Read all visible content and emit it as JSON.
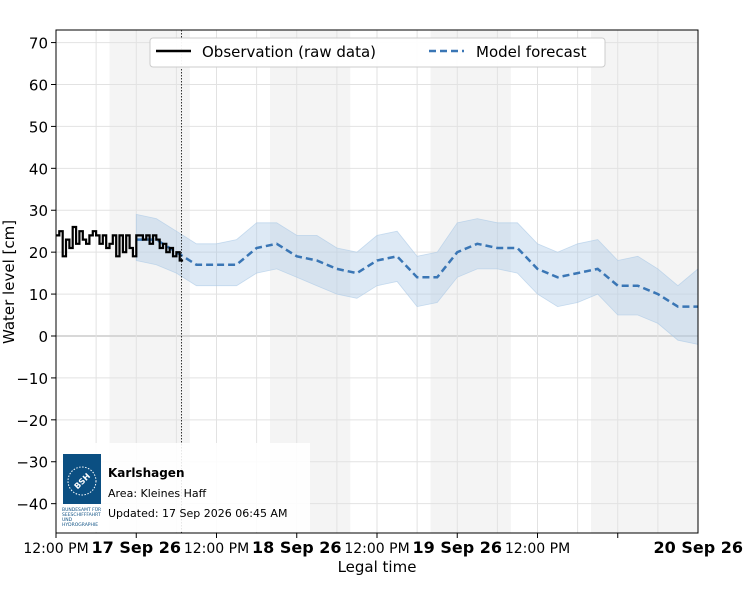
{
  "chart_data": {
    "type": "line",
    "title": "",
    "xlabel": "Legal time",
    "ylabel": "Water level [cm]",
    "ylim": [
      -47,
      73
    ],
    "xlim": [
      "2026-09-16 12:00",
      "2026-09-20 12:00"
    ],
    "y_ticks": [
      -40,
      -30,
      -20,
      -10,
      0,
      10,
      20,
      30,
      40,
      50,
      60,
      70
    ],
    "x_ticks": [
      {
        "label": "12:00 PM",
        "time": "2026-09-16 12:00",
        "bold": false
      },
      {
        "label": "17 Sep 26",
        "time": "2026-09-17 00:00",
        "bold": true
      },
      {
        "label": "12:00 PM",
        "time": "2026-09-17 12:00",
        "bold": false
      },
      {
        "label": "18 Sep 26",
        "time": "2026-09-18 00:00",
        "bold": true
      },
      {
        "label": "12:00 PM",
        "time": "2026-09-18 12:00",
        "bold": false
      },
      {
        "label": "19 Sep 26",
        "time": "2026-09-19 00:00",
        "bold": true
      },
      {
        "label": "12:00 PM",
        "time": "2026-09-19 12:00",
        "bold": false
      },
      {
        "label": "20 Sep 26",
        "time": "2026-09-20 00:00",
        "bold": true
      }
    ],
    "night_shading": [
      [
        "2026-09-16 20:00",
        "2026-09-17 08:00"
      ],
      [
        "2026-09-17 20:00",
        "2026-09-18 08:00"
      ],
      [
        "2026-09-18 20:00",
        "2026-09-19 08:00"
      ],
      [
        "2026-09-19 20:00",
        "2026-09-20 12:00"
      ]
    ],
    "now_marker": "2026-09-17 06:45",
    "grid": true,
    "legend_position": "top-center",
    "series": [
      {
        "name": "Observation (raw data)",
        "style": "solid",
        "color": "#000000",
        "x": [
          "2026-09-16 12:00",
          "2026-09-16 12:30",
          "2026-09-16 13:00",
          "2026-09-16 13:30",
          "2026-09-16 14:00",
          "2026-09-16 14:30",
          "2026-09-16 15:00",
          "2026-09-16 15:30",
          "2026-09-16 16:00",
          "2026-09-16 16:30",
          "2026-09-16 17:00",
          "2026-09-16 17:30",
          "2026-09-16 18:00",
          "2026-09-16 18:30",
          "2026-09-16 19:00",
          "2026-09-16 19:30",
          "2026-09-16 20:00",
          "2026-09-16 20:30",
          "2026-09-16 21:00",
          "2026-09-16 21:30",
          "2026-09-16 22:00",
          "2026-09-16 22:30",
          "2026-09-16 23:00",
          "2026-09-16 23:30",
          "2026-09-17 00:00",
          "2026-09-17 00:30",
          "2026-09-17 01:00",
          "2026-09-17 01:30",
          "2026-09-17 02:00",
          "2026-09-17 02:30",
          "2026-09-17 03:00",
          "2026-09-17 03:30",
          "2026-09-17 04:00",
          "2026-09-17 04:30",
          "2026-09-17 05:00",
          "2026-09-17 05:30",
          "2026-09-17 06:00",
          "2026-09-17 06:30",
          "2026-09-17 07:00"
        ],
        "values": [
          24,
          25,
          19,
          23,
          21,
          26,
          22,
          25,
          23,
          22,
          24,
          25,
          24,
          22,
          24,
          21,
          22,
          24,
          19,
          24,
          20,
          24,
          21,
          19,
          24,
          24,
          23,
          24,
          22,
          24,
          23,
          21,
          22,
          20,
          21,
          19,
          20,
          18,
          18
        ]
      },
      {
        "name": "Model forecast",
        "style": "dashed",
        "color": "#3a76b5",
        "band_color": "#a9c8e6",
        "x": [
          "2026-09-17 00:00",
          "2026-09-17 03:00",
          "2026-09-17 06:00",
          "2026-09-17 09:00",
          "2026-09-17 12:00",
          "2026-09-17 15:00",
          "2026-09-17 18:00",
          "2026-09-17 21:00",
          "2026-09-18 00:00",
          "2026-09-18 03:00",
          "2026-09-18 06:00",
          "2026-09-18 09:00",
          "2026-09-18 12:00",
          "2026-09-18 15:00",
          "2026-09-18 18:00",
          "2026-09-18 21:00",
          "2026-09-19 00:00",
          "2026-09-19 03:00",
          "2026-09-19 06:00",
          "2026-09-19 09:00",
          "2026-09-19 12:00",
          "2026-09-19 15:00",
          "2026-09-19 18:00",
          "2026-09-19 21:00",
          "2026-09-20 00:00",
          "2026-09-20 03:00",
          "2026-09-20 06:00",
          "2026-09-20 09:00",
          "2026-09-20 12:00"
        ],
        "values": [
          23,
          23,
          20,
          17,
          17,
          17,
          21,
          22,
          19,
          18,
          16,
          15,
          18,
          19,
          14,
          14,
          20,
          22,
          21,
          21,
          16,
          14,
          15,
          16,
          12,
          12,
          10,
          7,
          7
        ],
        "upper": [
          29,
          28,
          25,
          22,
          22,
          23,
          27,
          27,
          24,
          24,
          21,
          20,
          24,
          25,
          19,
          20,
          27,
          28,
          27,
          27,
          22,
          20,
          22,
          23,
          18,
          19,
          16,
          12,
          16
        ],
        "lower": [
          18,
          17,
          15,
          12,
          12,
          12,
          15,
          16,
          14,
          12,
          10,
          9,
          12,
          13,
          7,
          8,
          14,
          16,
          16,
          15,
          10,
          7,
          8,
          10,
          5,
          5,
          3,
          -1,
          -2
        ]
      }
    ]
  },
  "infobox": {
    "station": "Karlshagen",
    "area": "Area: Kleines Haff",
    "updated": "Updated: 17 Sep 2026 06:45 AM",
    "logo": {
      "color": "#0b4f82",
      "mark": "BSH",
      "caption_lines": [
        "BUNDESAMT FÜR",
        "SEESCHIFFFAHRT",
        "UND",
        "HYDROGRAPHIE"
      ]
    }
  }
}
